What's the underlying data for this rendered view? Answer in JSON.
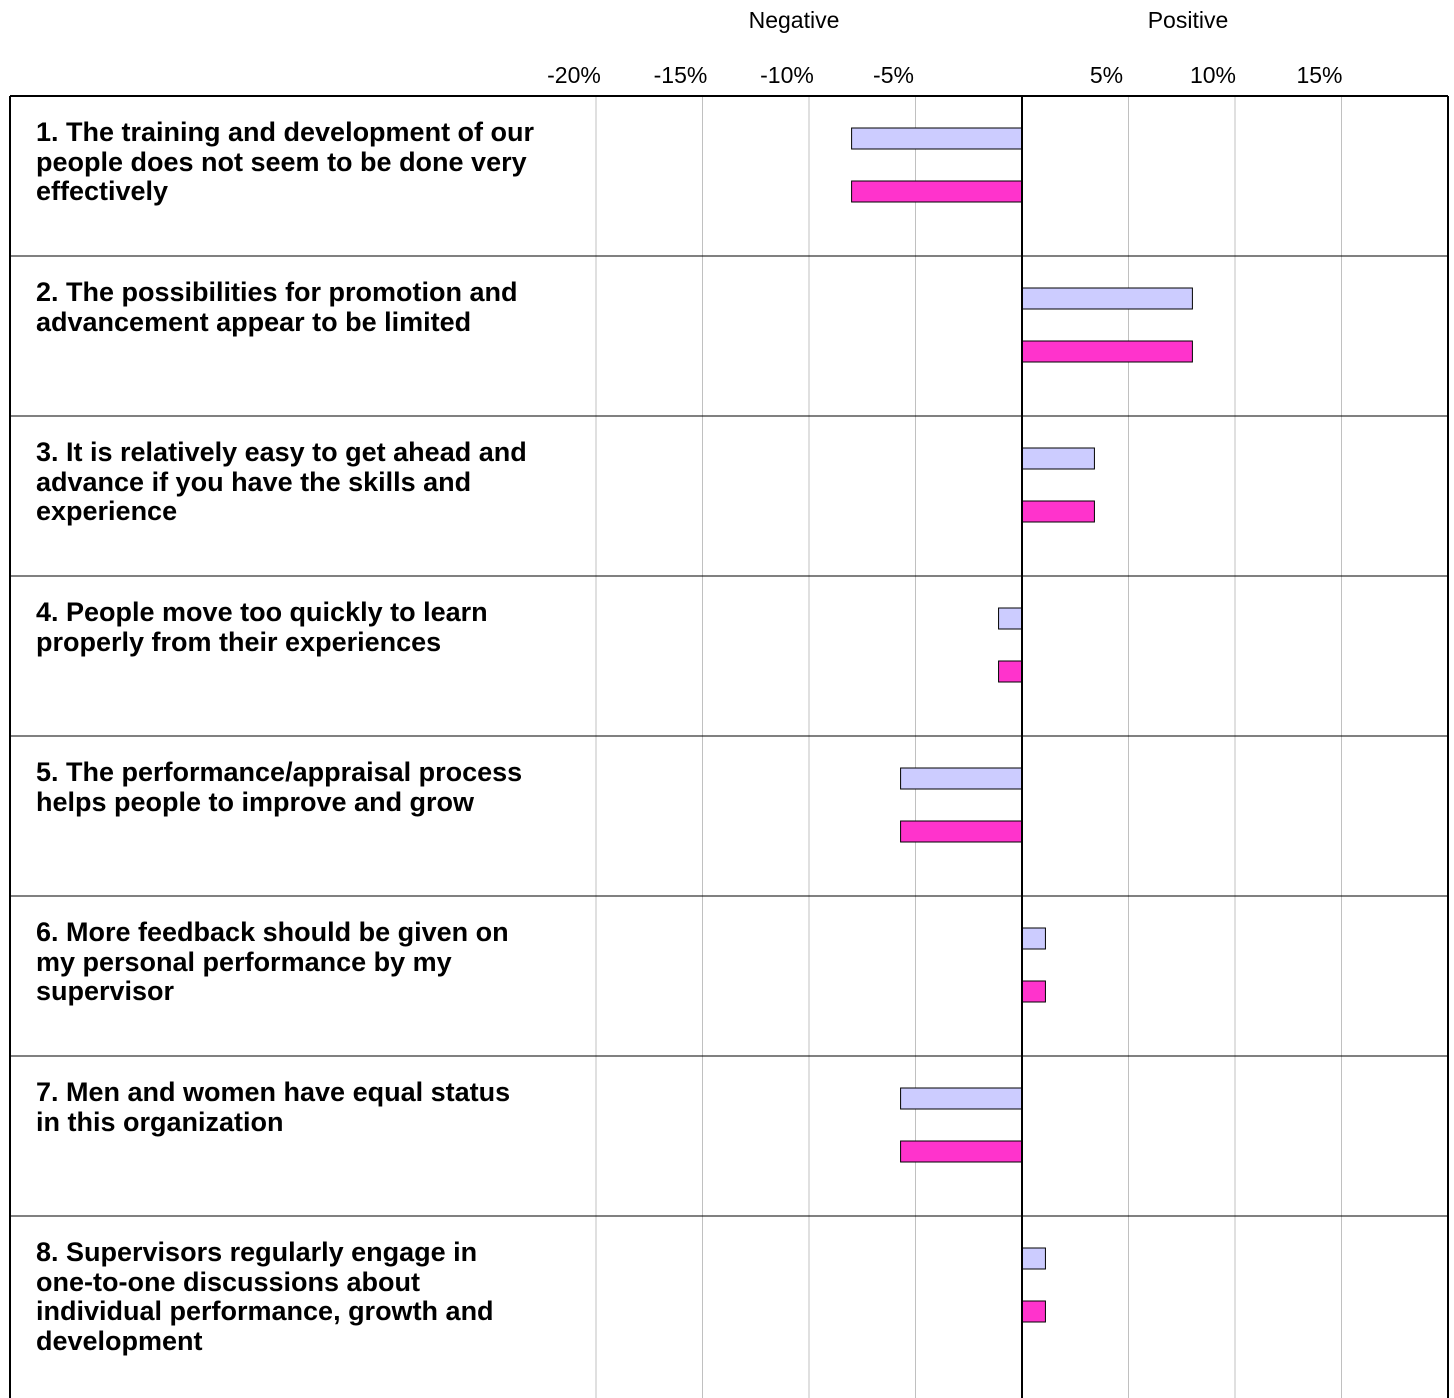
{
  "header": {
    "negative_label": "Negative",
    "positive_label": "Positive"
  },
  "colors": {
    "series_1": "#ccccff",
    "series_2": "#ff33cc",
    "grid": "#c0c0c0",
    "axis": "#000000"
  },
  "chart_data": {
    "type": "bar",
    "orientation": "horizontal",
    "xlim": [
      -20,
      20
    ],
    "tick_values": [
      -20,
      -15,
      -10,
      -5,
      5,
      10,
      15
    ],
    "tick_labels": [
      "-20%",
      "-15%",
      "-10%",
      "-5%",
      "5%",
      "10%",
      "15%"
    ],
    "grid": true,
    "categories": [
      "1. The training and development of our people does not seem to be done very effectively",
      "2. The possibilities for promotion and advancement appear to be limited",
      "3. It is relatively easy to get ahead and advance if you have the skills and experience",
      "4. People move too quickly to learn properly from their experiences",
      "5. The performance/appraisal process helps people to improve and grow",
      "6. More feedback should be given on my personal performance by my supervisor",
      "7. Men and women have equal status in this organization",
      "8. Supervisors regularly engage in one-to-one discussions about individual performance, growth and development"
    ],
    "series": [
      {
        "values": [
          -8,
          8,
          3.4,
          -1.1,
          -5.7,
          1.1,
          -5.7,
          1.1
        ]
      },
      {
        "values": [
          -8,
          8,
          3.4,
          -1.1,
          -5.7,
          1.1,
          -5.7,
          1.1
        ]
      }
    ]
  }
}
